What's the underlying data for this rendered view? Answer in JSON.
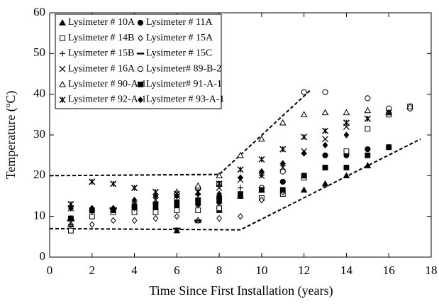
{
  "chart_data": {
    "type": "scatter",
    "xlabel": "Time Since First Installation (years)",
    "ylabel": "Temperature (ºC)",
    "xlim": [
      0,
      18
    ],
    "ylim": [
      0,
      60
    ],
    "xticks": [
      0,
      2,
      4,
      6,
      8,
      10,
      12,
      14,
      16,
      18
    ],
    "yticks": [
      0,
      10,
      20,
      30,
      40,
      50,
      60
    ],
    "color": "#000000",
    "legend": "upper left",
    "series": [
      {
        "name": "Lysimeter # 10A",
        "marker": "triangle-filled",
        "x": [
          1,
          6,
          7,
          8,
          9,
          10,
          12,
          13,
          14,
          15
        ],
        "values": [
          8,
          6.5,
          9,
          11.5,
          15,
          16.5,
          16.5,
          18,
          20,
          22.5
        ]
      },
      {
        "name": "Lysimeter # 11A",
        "marker": "circle-filled",
        "x": [
          1,
          2,
          3,
          4,
          5,
          6,
          7,
          8,
          9,
          10,
          11,
          12,
          13,
          14,
          15,
          16
        ],
        "values": [
          9.5,
          11.5,
          11.5,
          11.5,
          12,
          12.5,
          13,
          13.5,
          15,
          17,
          18.5,
          20,
          25,
          25,
          26.5,
          27
        ]
      },
      {
        "name": "Lysimeter # 14B",
        "marker": "square-open",
        "x": [
          1,
          2,
          3,
          4,
          5,
          6,
          7,
          8,
          10,
          11,
          12,
          13,
          14,
          15,
          16,
          17
        ],
        "values": [
          6.5,
          10,
          11,
          11,
          11,
          11.5,
          11.5,
          12,
          14.5,
          15.5,
          19.5,
          22,
          26,
          31.5,
          35,
          37
        ]
      },
      {
        "name": "Lysimeter # 15A",
        "marker": "diamond-open",
        "x": [
          1,
          2,
          3,
          4,
          5,
          6,
          7,
          8,
          9,
          10,
          11
        ],
        "values": [
          8,
          8,
          9,
          9,
          9.5,
          10,
          9,
          9.5,
          10,
          14,
          16
        ]
      },
      {
        "name": "Lysimeter # 15B",
        "marker": "plus",
        "x": [
          1,
          2,
          3,
          4,
          5,
          6,
          7,
          8,
          9,
          10,
          11
        ],
        "values": [
          8,
          11,
          11.5,
          12,
          13,
          13,
          14,
          14.5,
          17,
          20,
          23
        ]
      },
      {
        "name": "Lysimeter # 15C",
        "marker": "dash",
        "x": [
          1,
          3,
          6,
          7
        ],
        "values": [
          9,
          12,
          7,
          9
        ]
      },
      {
        "name": "Lysimeter # 16A",
        "marker": "cross",
        "x": [
          1,
          4,
          5,
          6,
          7,
          8,
          9,
          10,
          11,
          12,
          13,
          14,
          15,
          16
        ],
        "values": [
          12,
          13,
          14,
          15,
          16,
          17,
          19,
          20,
          22,
          26,
          29,
          32,
          34,
          36
        ]
      },
      {
        "name": "Lysimeter# 89-B-2",
        "marker": "circle-open",
        "x": [
          7,
          8,
          10,
          11,
          12,
          13,
          15,
          16,
          17
        ],
        "values": [
          17,
          18,
          17,
          21,
          40.5,
          40.5,
          39,
          36.5,
          36.5
        ]
      },
      {
        "name": "Lysimeter # 90-A-1",
        "marker": "triangle-open",
        "x": [
          6,
          7,
          8,
          9,
          10,
          11,
          12,
          13,
          14,
          15,
          16,
          17
        ],
        "values": [
          16,
          17.5,
          20,
          25,
          29,
          33,
          35,
          35.5,
          35.5,
          36,
          35.5,
          37
        ]
      },
      {
        "name": "Lysimeter# 91-A-1",
        "marker": "square-filled",
        "x": [
          1,
          2,
          3,
          4,
          5,
          6,
          7,
          8,
          9,
          10,
          11,
          12,
          13,
          14,
          15,
          16
        ],
        "values": [
          9.5,
          11.5,
          11.5,
          12.5,
          13,
          13.5,
          14,
          14.5,
          15.5,
          16.5,
          16.5,
          20,
          22,
          22,
          25,
          27
        ]
      },
      {
        "name": "Lysimeter # 92-A-1",
        "marker": "asterisk",
        "x": [
          1,
          2,
          3,
          4,
          5,
          6,
          7,
          8,
          9,
          10,
          11,
          12,
          13,
          14,
          15,
          16
        ],
        "values": [
          13,
          18.5,
          18,
          17,
          16,
          15.5,
          16,
          18,
          21.5,
          24,
          26.5,
          29.5,
          31,
          33,
          34,
          35.5
        ]
      },
      {
        "name": "Lysimeter # 93-A-1",
        "marker": "diamond-filled",
        "x": [
          1,
          2,
          3,
          4,
          5,
          6,
          7,
          8,
          9,
          10,
          11,
          12,
          13,
          14
        ],
        "values": [
          12,
          12,
          12,
          14,
          15,
          15,
          15.5,
          15.5,
          19.5,
          21,
          23,
          25.5,
          27.5,
          30
        ]
      }
    ],
    "bounds": [
      {
        "x": [
          0,
          8,
          12.3
        ],
        "values": [
          20,
          20.3,
          41
        ]
      },
      {
        "x": [
          0,
          9,
          17.5
        ],
        "values": [
          7,
          6.7,
          29
        ]
      }
    ]
  }
}
